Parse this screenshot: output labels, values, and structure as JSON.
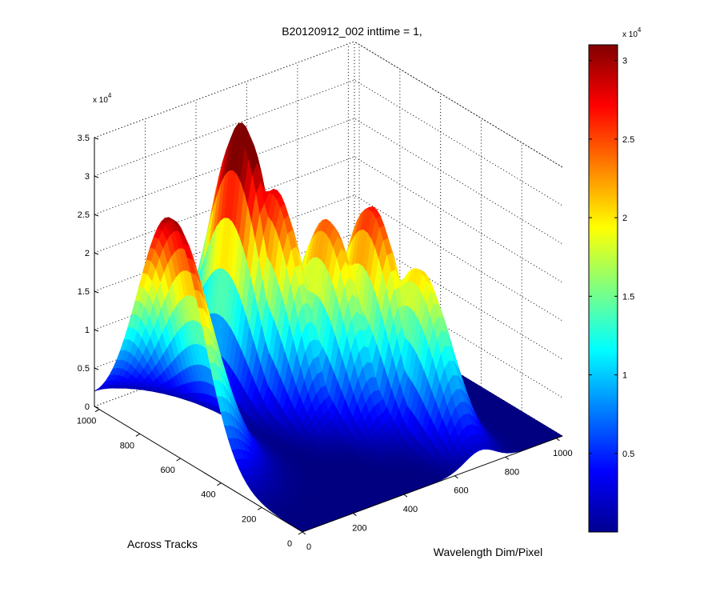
{
  "figure": {
    "title": "B20120912_002 inttime = 1,"
  },
  "chart_data": {
    "type": "surface3d",
    "title": "B20120912_002 inttime = 1,",
    "xlabel": "Wavelength Dim/Pixel",
    "ylabel": "Across Tracks",
    "zlabel": "",
    "xlim": [
      0,
      1024
    ],
    "ylim": [
      0,
      1024
    ],
    "zlim": [
      0,
      35000
    ],
    "x_ticks": [
      "0",
      "200",
      "400",
      "600",
      "800",
      "1000"
    ],
    "y_ticks": [
      "0",
      "200",
      "400",
      "600",
      "800",
      "1000"
    ],
    "z_ticks": [
      "0",
      "0.5",
      "1",
      "1.5",
      "2",
      "2.5",
      "3",
      "3.5"
    ],
    "z_exponent": "x 10",
    "z_exponent_power": "4",
    "grid": true,
    "colormap": "jet",
    "colorbar": {
      "ticks": [
        "0.5",
        "1",
        "1.5",
        "2",
        "2.5",
        "3"
      ],
      "exponent": "x 10",
      "exponent_power": "4",
      "range": [
        0,
        31000
      ]
    },
    "peaks_estimated": [
      {
        "x": 0,
        "y": 650,
        "z": 30500
      },
      {
        "x": 420,
        "y": 820,
        "z": 35000
      },
      {
        "x": 450,
        "y": 700,
        "z": 28000
      },
      {
        "x": 550,
        "y": 560,
        "z": 25000
      },
      {
        "x": 650,
        "y": 470,
        "z": 27000
      },
      {
        "x": 700,
        "y": 300,
        "z": 21000
      }
    ]
  }
}
